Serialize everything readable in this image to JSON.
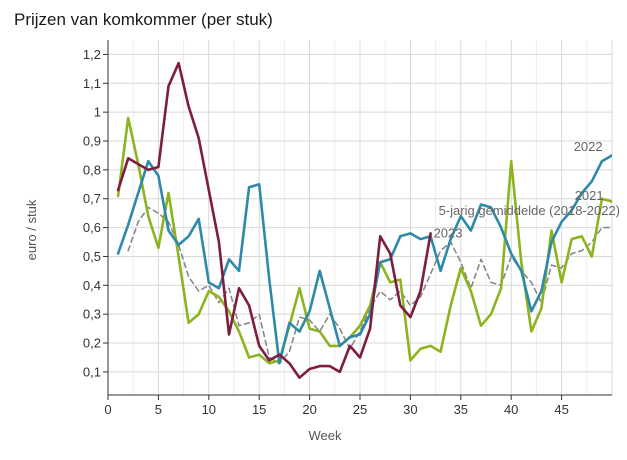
{
  "chart_data": {
    "type": "line",
    "title": "Prijzen van komkommer (per stuk)",
    "xlabel": "Week",
    "ylabel": "euro / stuk",
    "xlim": [
      0,
      50
    ],
    "ylim": [
      0.02,
      1.25
    ],
    "xticks": [
      0,
      5,
      10,
      15,
      20,
      25,
      30,
      35,
      40,
      45
    ],
    "yticks": [
      0.1,
      0.2,
      0.3,
      0.4,
      0.5,
      0.6,
      0.7,
      0.8,
      0.9,
      1,
      1.1,
      1.2
    ],
    "ytick_labels": [
      "0,1",
      "0,2",
      "0,3",
      "0,4",
      "0,5",
      "0,6",
      "0,7",
      "0,8",
      "0,9",
      "1",
      "1,1",
      "1,2"
    ],
    "grid": true,
    "legend": "inline labels",
    "series": [
      {
        "name": "2022",
        "color": "#2e8aa8",
        "dashed": false,
        "x": [
          1,
          2,
          3,
          4,
          5,
          6,
          7,
          8,
          9,
          10,
          11,
          12,
          13,
          14,
          15,
          16,
          17,
          18,
          19,
          20,
          21,
          22,
          23,
          24,
          25,
          26,
          27,
          28,
          29,
          30,
          31,
          32,
          33,
          34,
          35,
          36,
          37,
          38,
          39,
          40,
          41,
          42,
          43,
          44,
          45,
          46,
          47,
          48,
          49,
          50
        ],
        "values": [
          0.51,
          0.61,
          0.72,
          0.83,
          0.78,
          0.59,
          0.54,
          0.57,
          0.63,
          0.41,
          0.39,
          0.49,
          0.45,
          0.74,
          0.75,
          0.42,
          0.13,
          0.27,
          0.24,
          0.31,
          0.45,
          0.32,
          0.19,
          0.22,
          0.23,
          0.3,
          0.48,
          0.49,
          0.57,
          0.58,
          0.56,
          0.57,
          0.45,
          0.56,
          0.64,
          0.59,
          0.68,
          0.67,
          0.6,
          0.51,
          0.45,
          0.31,
          0.38,
          0.55,
          0.62,
          0.66,
          0.72,
          0.76,
          0.83,
          0.85
        ]
      },
      {
        "name": "2021",
        "color": "#8db31f",
        "dashed": false,
        "x": [
          1,
          2,
          3,
          4,
          5,
          6,
          7,
          8,
          9,
          10,
          11,
          12,
          13,
          14,
          15,
          16,
          17,
          18,
          19,
          20,
          21,
          22,
          23,
          24,
          25,
          26,
          27,
          28,
          29,
          30,
          31,
          32,
          33,
          34,
          35,
          36,
          37,
          38,
          39,
          40,
          41,
          42,
          43,
          44,
          45,
          46,
          47,
          48,
          49,
          50
        ],
        "values": [
          0.71,
          0.98,
          0.82,
          0.64,
          0.53,
          0.72,
          0.5,
          0.27,
          0.3,
          0.38,
          0.36,
          0.31,
          0.24,
          0.15,
          0.16,
          0.13,
          0.14,
          0.26,
          0.39,
          0.25,
          0.24,
          0.19,
          0.19,
          0.22,
          0.26,
          0.33,
          0.48,
          0.41,
          0.42,
          0.14,
          0.18,
          0.19,
          0.17,
          0.33,
          0.46,
          0.38,
          0.26,
          0.3,
          0.39,
          0.83,
          0.48,
          0.24,
          0.32,
          0.59,
          0.41,
          0.56,
          0.57,
          0.5,
          0.7,
          0.69
        ]
      },
      {
        "name": "2023",
        "color": "#7d1d3f",
        "dashed": false,
        "x": [
          1,
          2,
          3,
          4,
          5,
          6,
          7,
          8,
          9,
          10,
          11,
          12,
          13,
          14,
          15,
          16,
          17,
          18,
          19,
          20,
          21,
          22,
          23,
          24,
          25,
          26,
          27,
          28,
          29,
          30,
          31,
          32
        ],
        "values": [
          0.73,
          0.84,
          0.82,
          0.8,
          0.81,
          1.09,
          1.17,
          1.02,
          0.91,
          0.73,
          0.55,
          0.23,
          0.39,
          0.33,
          0.19,
          0.14,
          0.16,
          0.13,
          0.08,
          0.11,
          0.12,
          0.12,
          0.1,
          0.19,
          0.15,
          0.25,
          0.57,
          0.51,
          0.33,
          0.29,
          0.38,
          0.58
        ]
      },
      {
        "name": "5-jarig gemiddelde (2018-2022)",
        "color": "#888888",
        "dashed": true,
        "x": [
          2,
          3,
          4,
          5,
          6,
          7,
          8,
          9,
          10,
          11,
          12,
          13,
          14,
          15,
          16,
          17,
          18,
          19,
          20,
          21,
          22,
          23,
          24,
          25,
          26,
          27,
          28,
          29,
          30,
          31,
          32,
          33,
          34,
          35,
          36,
          37,
          38,
          39,
          40,
          41,
          42,
          43,
          44,
          45,
          46,
          47,
          48,
          49,
          50
        ],
        "values": [
          0.52,
          0.62,
          0.67,
          0.65,
          0.62,
          0.54,
          0.43,
          0.38,
          0.4,
          0.34,
          0.39,
          0.26,
          0.27,
          0.3,
          0.15,
          0.13,
          0.17,
          0.29,
          0.28,
          0.24,
          0.3,
          0.25,
          0.18,
          0.24,
          0.32,
          0.38,
          0.35,
          0.38,
          0.33,
          0.36,
          0.44,
          0.52,
          0.55,
          0.48,
          0.39,
          0.49,
          0.41,
          0.4,
          0.5,
          0.45,
          0.41,
          0.34,
          0.47,
          0.46,
          0.51,
          0.52,
          0.55,
          0.6,
          0.6
        ]
      }
    ]
  }
}
